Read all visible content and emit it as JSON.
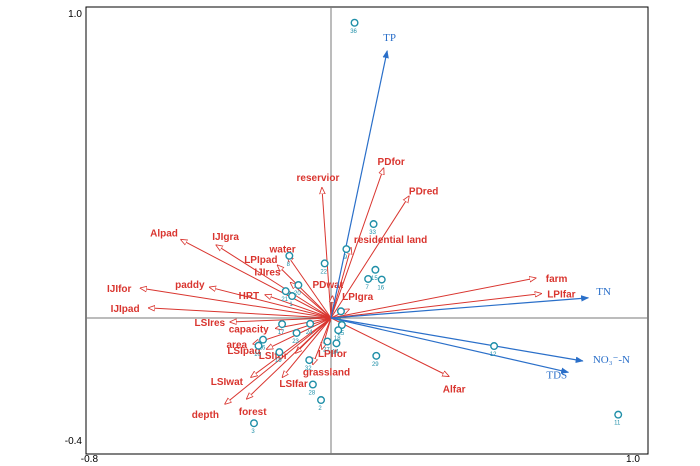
{
  "chart_data": {
    "type": "scatter",
    "title": "",
    "xlabel": "",
    "ylabel": "",
    "xlim": [
      -0.8,
      1.0
    ],
    "ylim": [
      -0.4,
      1.0
    ],
    "x_tick_labels": [
      {
        "v": -0.8,
        "t": "-0.8"
      },
      {
        "v": 1.0,
        "t": "1.0"
      }
    ],
    "y_tick_labels": [
      {
        "v": 1.0,
        "t": "1.0"
      },
      {
        "v": -0.4,
        "t": "-0.4"
      }
    ],
    "colors": {
      "environment": "#d9352f",
      "response": "#2a6fc9",
      "sites": "#1f8fa8"
    },
    "response_vectors": [
      {
        "label": "TP",
        "x": 0.186,
        "y": 0.876
      },
      {
        "label": "TN",
        "x": 0.852,
        "y": 0.066
      },
      {
        "label": "NO₃⁻-N",
        "x": 0.834,
        "y": -0.141
      },
      {
        "label": "TDS",
        "x": 0.786,
        "y": -0.178
      }
    ],
    "environment_vectors": [
      {
        "label": "PDfor",
        "x": 0.174,
        "y": 0.491
      },
      {
        "label": "PDred",
        "x": 0.258,
        "y": 0.399
      },
      {
        "label": "reservior",
        "x": -0.03,
        "y": 0.427
      },
      {
        "label": "residential land",
        "x": 0.066,
        "y": 0.23
      },
      {
        "label": "Alpad",
        "x": -0.497,
        "y": 0.257
      },
      {
        "label": "IJIgra",
        "x": -0.38,
        "y": 0.239
      },
      {
        "label": "water",
        "x": -0.144,
        "y": 0.205
      },
      {
        "label": "LPIpad",
        "x": -0.177,
        "y": 0.173
      },
      {
        "label": "IJIres",
        "x": -0.134,
        "y": 0.116
      },
      {
        "label": "paddy",
        "x": -0.402,
        "y": 0.101
      },
      {
        "label": "IJIfor",
        "x": -0.631,
        "y": 0.098
      },
      {
        "label": "HRT",
        "x": -0.218,
        "y": 0.076
      },
      {
        "label": "PDwat",
        "x": 0.005,
        "y": 0.072
      },
      {
        "label": "LPIgra",
        "x": 0.06,
        "y": 0.029
      },
      {
        "label": "IJIpad",
        "x": -0.604,
        "y": 0.033
      },
      {
        "label": "farm",
        "x": 0.678,
        "y": 0.131
      },
      {
        "label": "LPIfar",
        "x": 0.696,
        "y": 0.08
      },
      {
        "label": "LSIres",
        "x": -0.334,
        "y": -0.013
      },
      {
        "label": "capacity",
        "x": -0.183,
        "y": -0.034
      },
      {
        "label": "area",
        "x": -0.258,
        "y": -0.085
      },
      {
        "label": "LSIpad",
        "x": -0.213,
        "y": -0.102
      },
      {
        "label": "LSIfor",
        "x": -0.117,
        "y": -0.115
      },
      {
        "label": "LPIfor",
        "x": -0.03,
        "y": -0.102
      },
      {
        "label": "grassland",
        "x": -0.06,
        "y": -0.152
      },
      {
        "label": "LSIwat",
        "x": -0.265,
        "y": -0.194
      },
      {
        "label": "LSIfar",
        "x": -0.161,
        "y": -0.194
      },
      {
        "label": "Alfar",
        "x": 0.39,
        "y": -0.191
      },
      {
        "label": "depth",
        "x": -0.351,
        "y": -0.282
      },
      {
        "label": "forest",
        "x": -0.279,
        "y": -0.265
      }
    ],
    "sites": [
      {
        "id": "36",
        "x": 0.078,
        "y": 0.968
      },
      {
        "id": "33",
        "x": 0.141,
        "y": 0.308
      },
      {
        "id": "9",
        "x": 0.051,
        "y": 0.226
      },
      {
        "id": "15",
        "x": 0.147,
        "y": 0.158
      },
      {
        "id": "16",
        "x": 0.168,
        "y": 0.126
      },
      {
        "id": "7",
        "x": 0.123,
        "y": 0.128
      },
      {
        "id": "8",
        "x": -0.138,
        "y": 0.204
      },
      {
        "id": "22",
        "x": -0.021,
        "y": 0.179
      },
      {
        "id": "20",
        "x": -0.108,
        "y": 0.108
      },
      {
        "id": "21",
        "x": -0.15,
        "y": 0.088
      },
      {
        "id": "1",
        "x": -0.129,
        "y": 0.072
      },
      {
        "id": "6",
        "x": 0.033,
        "y": 0.022
      },
      {
        "id": "17",
        "x": -0.162,
        "y": -0.02
      },
      {
        "id": "24",
        "x": -0.069,
        "y": -0.019
      },
      {
        "id": "25",
        "x": 0.036,
        "y": -0.023
      },
      {
        "id": "18",
        "x": 0.024,
        "y": -0.04
      },
      {
        "id": "23",
        "x": -0.114,
        "y": -0.049
      },
      {
        "id": "26",
        "x": -0.225,
        "y": -0.071
      },
      {
        "id": "10",
        "x": -0.24,
        "y": -0.091
      },
      {
        "id": "14",
        "x": 0.018,
        "y": -0.083
      },
      {
        "id": "27",
        "x": -0.012,
        "y": -0.077
      },
      {
        "id": "19",
        "x": -0.171,
        "y": -0.112
      },
      {
        "id": "32",
        "x": -0.072,
        "y": -0.138
      },
      {
        "id": "12",
        "x": 0.54,
        "y": -0.092
      },
      {
        "id": "29",
        "x": 0.15,
        "y": -0.124
      },
      {
        "id": "28",
        "x": -0.06,
        "y": -0.218
      },
      {
        "id": "2",
        "x": -0.033,
        "y": -0.269
      },
      {
        "id": "3",
        "x": -0.255,
        "y": -0.345
      },
      {
        "id": "11",
        "x": 0.951,
        "y": -0.317
      }
    ]
  }
}
